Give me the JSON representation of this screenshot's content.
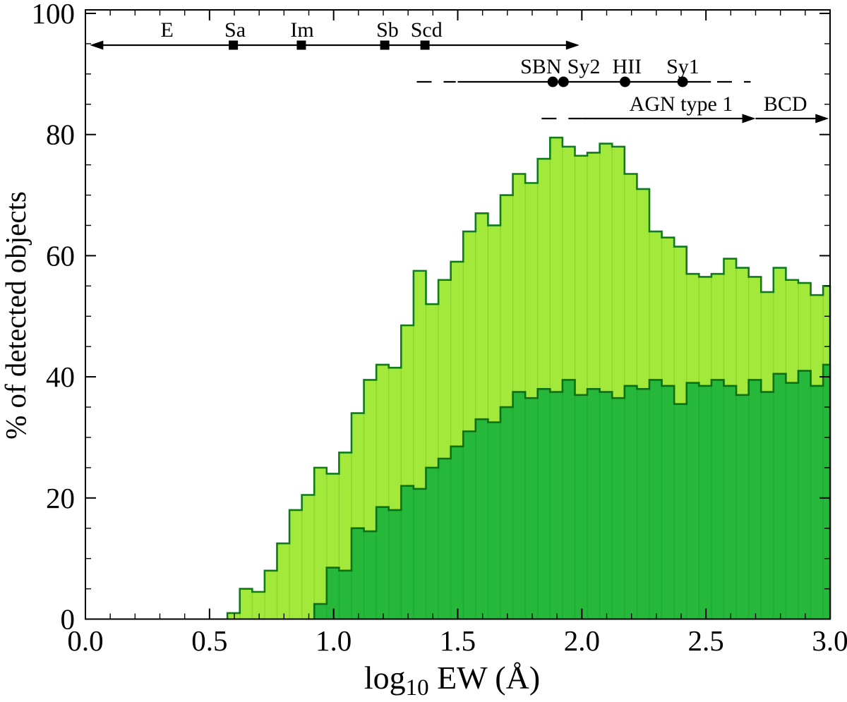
{
  "figure": {
    "background": "#ffffff",
    "description": "Histogram of percentage of detected objects versus log10 equivalent width"
  },
  "colors": {
    "frame": "#000000",
    "annotation": "#000000",
    "light_fill": "#a2e93c",
    "light_divider": "#8fd52f",
    "light_edge": "#107b1b",
    "dark_fill": "#25b83b",
    "dark_divider": "#1faa33",
    "dark_edge": "#0d7014"
  },
  "chart_data": {
    "type": "bar",
    "title": "",
    "xlabel": "log10 EW (A)",
    "xlabel_parts": {
      "pre": "log",
      "sub": "10",
      "post": " EW (Å)"
    },
    "ylabel": "% of detected objects",
    "xlim": [
      0.0,
      3.0
    ],
    "ylim": [
      0,
      100
    ],
    "grid": false,
    "x_major_ticks": {
      "values": [
        0.0,
        0.5,
        1.0,
        1.5,
        2.0,
        2.5,
        3.0
      ],
      "labels": [
        "0.0",
        "0.5",
        "1.0",
        "1.5",
        "2.0",
        "2.5",
        "3.0"
      ]
    },
    "x_minor_step": 0.1,
    "y_major_ticks": {
      "values": [
        0,
        20,
        40,
        60,
        80,
        100
      ],
      "labels": [
        "0",
        "20",
        "40",
        "60",
        "80",
        "100"
      ]
    },
    "y_minor_step": 5,
    "series": [
      {
        "name": "all-emission-line-detections",
        "style": "light-green",
        "bin_start": 0.572,
        "bin_width": 0.05,
        "clip_max_x": 3.0,
        "values": [
          1,
          5,
          4.5,
          8,
          12.5,
          18,
          20.5,
          25,
          24,
          27.5,
          34,
          39.5,
          42,
          41.5,
          48.5,
          57.5,
          52,
          56,
          59,
          64,
          67,
          65,
          70,
          73.5,
          72,
          76,
          79.5,
          78,
          76.5,
          77,
          78.5,
          78,
          73.5,
          71,
          64,
          63,
          61.5,
          57,
          56.5,
          57,
          59.5,
          58,
          56.5,
          54,
          58,
          56,
          55.5,
          53.5,
          55
        ]
      },
      {
        "name": "subset-detections",
        "style": "dark-green",
        "bin_start": 0.922,
        "bin_width": 0.05,
        "clip_max_x": 3.0,
        "values": [
          2.5,
          8.5,
          8,
          15,
          14.5,
          18.5,
          18,
          22,
          21.5,
          25,
          26.5,
          28.5,
          31,
          33,
          32.5,
          35,
          37.5,
          36.5,
          38,
          37.5,
          39.5,
          37,
          38,
          37.5,
          36.5,
          38.5,
          38,
          39.5,
          38.5,
          35.5,
          39,
          38.5,
          39.5,
          38.5,
          37,
          39.5,
          37.5,
          40.5,
          39,
          41,
          38.5,
          42
        ]
      }
    ]
  },
  "annotations": [
    {
      "name": "morphology-sequence",
      "line_y": 64,
      "label_baseline_y": 52,
      "segments": [
        {
          "from": 0.035,
          "to": 1.975,
          "style": "solid"
        }
      ],
      "arrows": [
        {
          "at": 0.018,
          "dir": "left"
        },
        {
          "at": 1.99,
          "dir": "right"
        }
      ],
      "markers": [
        {
          "v": 0.596,
          "shape": "square"
        },
        {
          "v": 0.87,
          "shape": "square"
        },
        {
          "v": 1.206,
          "shape": "square"
        },
        {
          "v": 1.368,
          "shape": "square"
        }
      ],
      "labels": [
        {
          "text": "E",
          "v": 0.329
        },
        {
          "text": "Sa",
          "v": 0.603
        },
        {
          "text": "Im",
          "v": 0.873
        },
        {
          "text": "Sb",
          "v": 1.217
        },
        {
          "text": "Scd",
          "v": 1.374
        }
      ]
    },
    {
      "name": "emission-line-classes",
      "line_y": 116,
      "label_baseline_y": 104,
      "segments": [
        {
          "from": 1.335,
          "to": 1.492,
          "style": "dash"
        },
        {
          "from": 1.5,
          "to": 2.52,
          "style": "solid"
        },
        {
          "from": 2.545,
          "to": 2.68,
          "style": "dash"
        }
      ],
      "arrows": [],
      "markers": [
        {
          "v": 1.883,
          "shape": "dot"
        },
        {
          "v": 1.926,
          "shape": "dot"
        },
        {
          "v": 2.174,
          "shape": "dot"
        },
        {
          "v": 2.406,
          "shape": "dot"
        }
      ],
      "labels": [
        {
          "text": "SBN",
          "v": 1.835
        },
        {
          "text": "Sy2",
          "v": 2.008
        },
        {
          "text": "HII",
          "v": 2.182
        },
        {
          "text": "Sy1",
          "v": 2.407
        }
      ]
    },
    {
      "name": "agn-type1-bcd",
      "line_y": 168,
      "label_baseline_y": 157,
      "segments": [
        {
          "from": 1.838,
          "to": 2.0,
          "style": "dash"
        },
        {
          "from": 2.0,
          "to": 2.69,
          "style": "solid"
        },
        {
          "from": 2.7,
          "to": 2.985,
          "style": "solid"
        }
      ],
      "arrows": [
        {
          "at": 2.7,
          "dir": "right"
        },
        {
          "at": 2.995,
          "dir": "right"
        }
      ],
      "markers": [],
      "labels": [
        {
          "text": "AGN type 1",
          "v": 2.4
        },
        {
          "text": "BCD",
          "v": 2.82
        }
      ]
    }
  ]
}
